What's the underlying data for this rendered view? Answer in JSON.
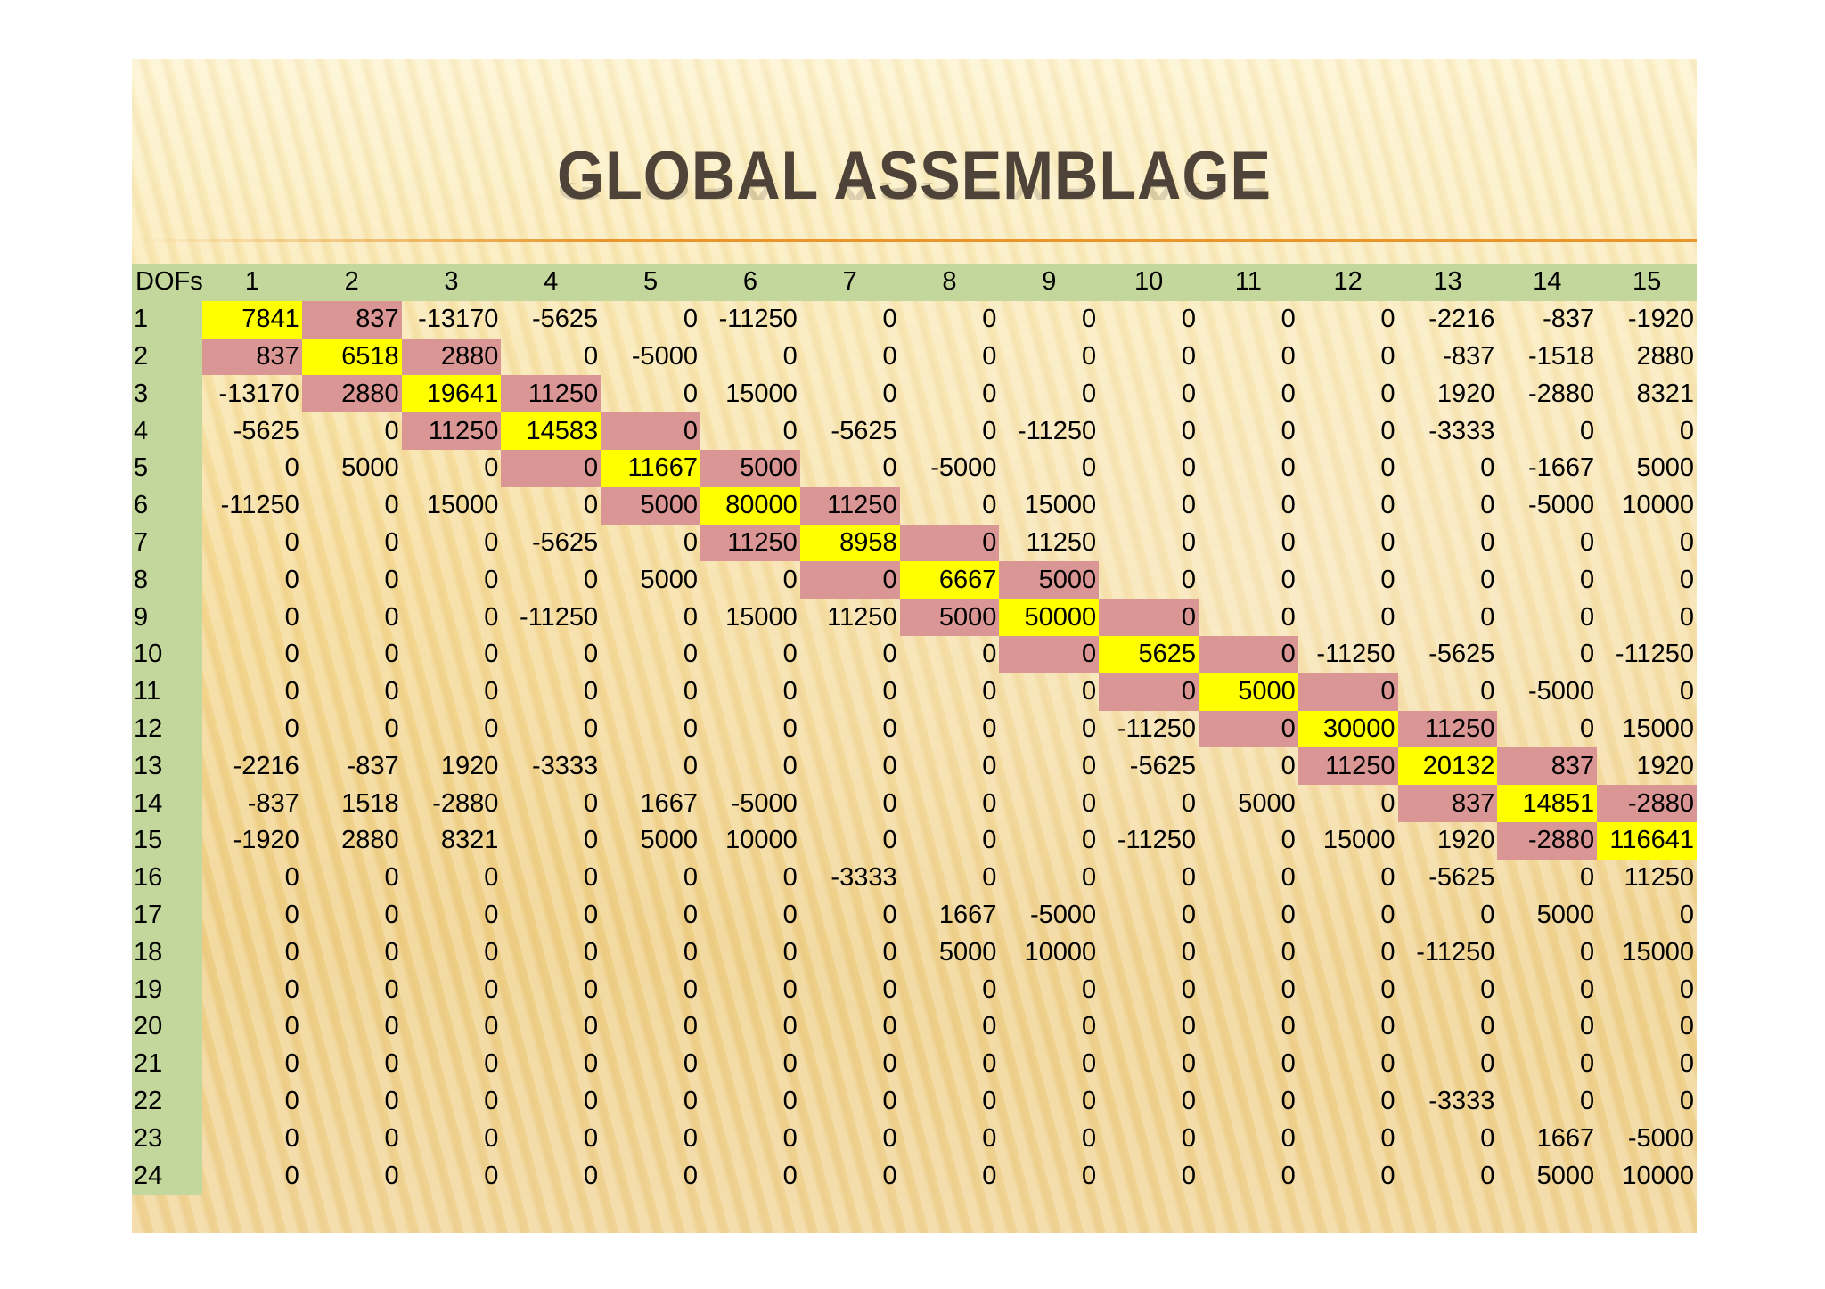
{
  "title": "GLOBAL ASSEMBLAGE",
  "table": {
    "corner": "DOFs",
    "columns": [
      "1",
      "2",
      "3",
      "4",
      "5",
      "6",
      "7",
      "8",
      "9",
      "10",
      "11",
      "12",
      "13",
      "14",
      "15"
    ],
    "rows": [
      {
        "label": "1",
        "cells": [
          "7841",
          "837",
          "-13170",
          "-5625",
          "0",
          "-11250",
          "0",
          "0",
          "0",
          "0",
          "0",
          "0",
          "-2216",
          "-837",
          "-1920"
        ]
      },
      {
        "label": "2",
        "cells": [
          "837",
          "6518",
          "2880",
          "0",
          "-5000",
          "0",
          "0",
          "0",
          "0",
          "0",
          "0",
          "0",
          "-837",
          "-1518",
          "2880"
        ]
      },
      {
        "label": "3",
        "cells": [
          "-13170",
          "2880",
          "19641",
          "11250",
          "0",
          "15000",
          "0",
          "0",
          "0",
          "0",
          "0",
          "0",
          "1920",
          "-2880",
          "8321"
        ]
      },
      {
        "label": "4",
        "cells": [
          "-5625",
          "0",
          "11250",
          "14583",
          "0",
          "0",
          "-5625",
          "0",
          "-11250",
          "0",
          "0",
          "0",
          "-3333",
          "0",
          "0"
        ]
      },
      {
        "label": "5",
        "cells": [
          "0",
          "5000",
          "0",
          "0",
          "11667",
          "5000",
          "0",
          "-5000",
          "0",
          "0",
          "0",
          "0",
          "0",
          "-1667",
          "5000"
        ]
      },
      {
        "label": "6",
        "cells": [
          "-11250",
          "0",
          "15000",
          "0",
          "5000",
          "80000",
          "11250",
          "0",
          "15000",
          "0",
          "0",
          "0",
          "0",
          "-5000",
          "10000"
        ]
      },
      {
        "label": "7",
        "cells": [
          "0",
          "0",
          "0",
          "-5625",
          "0",
          "11250",
          "8958",
          "0",
          "11250",
          "0",
          "0",
          "0",
          "0",
          "0",
          "0"
        ]
      },
      {
        "label": "8",
        "cells": [
          "0",
          "0",
          "0",
          "0",
          "5000",
          "0",
          "0",
          "6667",
          "5000",
          "0",
          "0",
          "0",
          "0",
          "0",
          "0"
        ]
      },
      {
        "label": "9",
        "cells": [
          "0",
          "0",
          "0",
          "-11250",
          "0",
          "15000",
          "11250",
          "5000",
          "50000",
          "0",
          "0",
          "0",
          "0",
          "0",
          "0"
        ]
      },
      {
        "label": "10",
        "cells": [
          "0",
          "0",
          "0",
          "0",
          "0",
          "0",
          "0",
          "0",
          "0",
          "5625",
          "0",
          "-11250",
          "-5625",
          "0",
          "-11250"
        ]
      },
      {
        "label": "11",
        "cells": [
          "0",
          "0",
          "0",
          "0",
          "0",
          "0",
          "0",
          "0",
          "0",
          "0",
          "5000",
          "0",
          "0",
          "-5000",
          "0"
        ]
      },
      {
        "label": "12",
        "cells": [
          "0",
          "0",
          "0",
          "0",
          "0",
          "0",
          "0",
          "0",
          "0",
          "-11250",
          "0",
          "30000",
          "11250",
          "0",
          "15000"
        ]
      },
      {
        "label": "13",
        "cells": [
          "-2216",
          "-837",
          "1920",
          "-3333",
          "0",
          "0",
          "0",
          "0",
          "0",
          "-5625",
          "0",
          "11250",
          "20132",
          "837",
          "1920"
        ]
      },
      {
        "label": "14",
        "cells": [
          "-837",
          "1518",
          "-2880",
          "0",
          "1667",
          "-5000",
          "0",
          "0",
          "0",
          "0",
          "5000",
          "0",
          "837",
          "14851",
          "-2880"
        ]
      },
      {
        "label": "15",
        "cells": [
          "-1920",
          "2880",
          "8321",
          "0",
          "5000",
          "10000",
          "0",
          "0",
          "0",
          "-11250",
          "0",
          "15000",
          "1920",
          "-2880",
          "116641"
        ]
      },
      {
        "label": "16",
        "cells": [
          "0",
          "0",
          "0",
          "0",
          "0",
          "0",
          "-3333",
          "0",
          "0",
          "0",
          "0",
          "0",
          "-5625",
          "0",
          "11250"
        ]
      },
      {
        "label": "17",
        "cells": [
          "0",
          "0",
          "0",
          "0",
          "0",
          "0",
          "0",
          "1667",
          "-5000",
          "0",
          "0",
          "0",
          "0",
          "5000",
          "0"
        ]
      },
      {
        "label": "18",
        "cells": [
          "0",
          "0",
          "0",
          "0",
          "0",
          "0",
          "0",
          "5000",
          "10000",
          "0",
          "0",
          "0",
          "-11250",
          "0",
          "15000"
        ]
      },
      {
        "label": "19",
        "cells": [
          "0",
          "0",
          "0",
          "0",
          "0",
          "0",
          "0",
          "0",
          "0",
          "0",
          "0",
          "0",
          "0",
          "0",
          "0"
        ]
      },
      {
        "label": "20",
        "cells": [
          "0",
          "0",
          "0",
          "0",
          "0",
          "0",
          "0",
          "0",
          "0",
          "0",
          "0",
          "0",
          "0",
          "0",
          "0"
        ]
      },
      {
        "label": "21",
        "cells": [
          "0",
          "0",
          "0",
          "0",
          "0",
          "0",
          "0",
          "0",
          "0",
          "0",
          "0",
          "0",
          "0",
          "0",
          "0"
        ]
      },
      {
        "label": "22",
        "cells": [
          "0",
          "0",
          "0",
          "0",
          "0",
          "0",
          "0",
          "0",
          "0",
          "0",
          "0",
          "0",
          "-3333",
          "0",
          "0"
        ]
      },
      {
        "label": "23",
        "cells": [
          "0",
          "0",
          "0",
          "0",
          "0",
          "0",
          "0",
          "0",
          "0",
          "0",
          "0",
          "0",
          "0",
          "1667",
          "-5000"
        ]
      },
      {
        "label": "24",
        "cells": [
          "0",
          "0",
          "0",
          "0",
          "0",
          "0",
          "0",
          "0",
          "0",
          "0",
          "0",
          "0",
          "0",
          "5000",
          "10000"
        ]
      }
    ]
  },
  "colors": {
    "header_green": "#c3d69b",
    "diagonal_yellow": "#ffff00",
    "offdiagonal_rose": "#d99694",
    "title_brown": "#4e4338",
    "rule_orange": "#e8962c"
  }
}
